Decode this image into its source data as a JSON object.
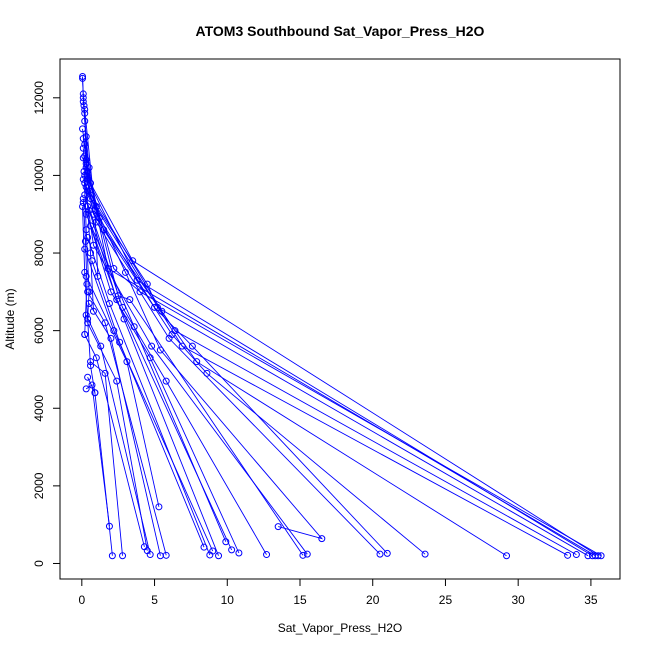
{
  "chart_data": {
    "type": "line",
    "title": "ATOM3 Southbound Sat_Vapor_Press_H2O",
    "xlabel": "Sat_Vapor_Press_H2O",
    "ylabel": "Altitude (m)",
    "xlim": [
      -1.5,
      37
    ],
    "ylim": [
      -400,
      13000
    ],
    "x_ticks": [
      0,
      5,
      10,
      15,
      20,
      25,
      30,
      35
    ],
    "y_ticks": [
      0,
      2000,
      4000,
      6000,
      8000,
      10000,
      12000
    ],
    "x_tick_labels": [
      "0",
      "5",
      "10",
      "15",
      "20",
      "25",
      "30",
      "35"
    ],
    "y_tick_labels": [
      "0",
      "2000",
      "4000",
      "6000",
      "8000",
      "10000",
      "12000"
    ],
    "grid": false,
    "legend": "none",
    "marker": "open-circle",
    "color": "#0000ff",
    "series": [
      {
        "points": [
          [
            0.05,
            12500
          ],
          [
            0.1,
            12100
          ],
          [
            0.15,
            11800
          ],
          [
            0.2,
            11400
          ],
          [
            0.6,
            9800
          ],
          [
            3.5,
            7800
          ],
          [
            35.5,
            200
          ]
        ]
      },
      {
        "points": [
          [
            0.05,
            12550
          ],
          [
            0.1,
            12000
          ],
          [
            0.2,
            11600
          ],
          [
            0.3,
            10400
          ],
          [
            1.8,
            7600
          ],
          [
            35.3,
            200
          ]
        ]
      },
      {
        "points": [
          [
            0.1,
            11900
          ],
          [
            0.3,
            11000
          ],
          [
            0.4,
            9900
          ],
          [
            3.8,
            7300
          ],
          [
            35.1,
            200
          ]
        ]
      },
      {
        "points": [
          [
            0.05,
            11200
          ],
          [
            0.2,
            10800
          ],
          [
            0.5,
            10200
          ],
          [
            1.0,
            9200
          ],
          [
            4.5,
            7200
          ],
          [
            5.2,
            6600
          ],
          [
            34.8,
            200
          ]
        ]
      },
      {
        "points": [
          [
            0.1,
            10950
          ],
          [
            0.4,
            10100
          ],
          [
            2.2,
            7600
          ],
          [
            4.0,
            7000
          ],
          [
            35.7,
            200
          ]
        ]
      },
      {
        "points": [
          [
            0.2,
            10500
          ],
          [
            0.5,
            9600
          ],
          [
            5.5,
            6500
          ],
          [
            6.4,
            6000
          ],
          [
            34.0,
            230
          ]
        ]
      },
      {
        "points": [
          [
            0.1,
            10450
          ],
          [
            0.6,
            9400
          ],
          [
            6.9,
            5600
          ],
          [
            33.4,
            210
          ]
        ]
      },
      {
        "points": [
          [
            0.3,
            10300
          ],
          [
            0.8,
            9000
          ],
          [
            7.9,
            5200
          ],
          [
            29.2,
            200
          ]
        ]
      },
      {
        "points": [
          [
            0.2,
            10000
          ],
          [
            1.5,
            8600
          ],
          [
            6.2,
            5900
          ],
          [
            8.6,
            4900
          ],
          [
            23.6,
            240
          ]
        ]
      },
      {
        "points": [
          [
            0.1,
            9900
          ],
          [
            1.2,
            8900
          ],
          [
            5.0,
            6600
          ],
          [
            7.6,
            5600
          ],
          [
            21.0,
            260
          ]
        ]
      },
      {
        "points": [
          [
            0.3,
            9700
          ],
          [
            1.0,
            8800
          ],
          [
            6.0,
            5800
          ],
          [
            20.5,
            240
          ]
        ]
      },
      {
        "points": [
          [
            0.4,
            9600
          ],
          [
            3.0,
            7500
          ],
          [
            5.4,
            5500
          ],
          [
            16.5,
            640
          ],
          [
            13.5,
            950
          ]
        ]
      },
      {
        "points": [
          [
            0.2,
            9800
          ],
          [
            0.8,
            8200
          ],
          [
            4.8,
            5600
          ],
          [
            15.5,
            240
          ]
        ]
      },
      {
        "points": [
          [
            0.3,
            10200
          ],
          [
            2.5,
            6900
          ],
          [
            3.3,
            6800
          ],
          [
            15.2,
            210
          ]
        ]
      },
      {
        "points": [
          [
            0.2,
            9500
          ],
          [
            2.8,
            6600
          ],
          [
            5.8,
            4700
          ],
          [
            12.7,
            230
          ]
        ]
      },
      {
        "points": [
          [
            0.1,
            9300
          ],
          [
            2.0,
            7000
          ],
          [
            4.7,
            5300
          ],
          [
            10.8,
            270
          ]
        ]
      },
      {
        "points": [
          [
            0.5,
            9100
          ],
          [
            2.4,
            6800
          ],
          [
            10.3,
            350
          ]
        ]
      },
      {
        "points": [
          [
            0.3,
            9000
          ],
          [
            3.6,
            6100
          ],
          [
            9.9,
            560
          ]
        ]
      },
      {
        "points": [
          [
            0.6,
            8700
          ],
          [
            2.9,
            6300
          ],
          [
            9.4,
            200
          ]
        ]
      },
      {
        "points": [
          [
            0.4,
            8400
          ],
          [
            1.9,
            6700
          ],
          [
            8.8,
            220
          ]
        ]
      },
      {
        "points": [
          [
            0.2,
            8100
          ],
          [
            2.2,
            6000
          ],
          [
            9.0,
            320
          ]
        ]
      },
      {
        "points": [
          [
            0.7,
            7800
          ],
          [
            2.6,
            5700
          ],
          [
            8.4,
            420
          ]
        ]
      },
      {
        "points": [
          [
            0.3,
            7400
          ],
          [
            3.1,
            5200
          ],
          [
            5.3,
            1460
          ]
        ]
      },
      {
        "points": [
          [
            0.4,
            7000
          ],
          [
            1.6,
            6200
          ],
          [
            5.8,
            210
          ]
        ]
      },
      {
        "points": [
          [
            0.5,
            6700
          ],
          [
            2.0,
            5800
          ],
          [
            5.4,
            200
          ]
        ]
      },
      {
        "points": [
          [
            0.3,
            6400
          ],
          [
            1.3,
            5600
          ],
          [
            4.7,
            230
          ]
        ]
      },
      {
        "points": [
          [
            0.4,
            6200
          ],
          [
            2.4,
            4700
          ],
          [
            4.5,
            330
          ]
        ]
      },
      {
        "points": [
          [
            0.2,
            5900
          ],
          [
            1.0,
            5300
          ],
          [
            4.3,
            430
          ]
        ]
      },
      {
        "points": [
          [
            0.6,
            5200
          ],
          [
            1.6,
            4900
          ],
          [
            2.8,
            200
          ]
        ]
      },
      {
        "points": [
          [
            0.4,
            4800
          ],
          [
            0.9,
            4400
          ],
          [
            2.1,
            200
          ]
        ]
      },
      {
        "points": [
          [
            0.3,
            4500
          ],
          [
            0.7,
            4600
          ],
          [
            1.9,
            960
          ]
        ]
      },
      {
        "points": [
          [
            0.2,
            11700
          ],
          [
            0.9,
            9100
          ],
          [
            1.1,
            7400
          ]
        ]
      },
      {
        "points": [
          [
            0.1,
            10700
          ],
          [
            0.4,
            9200
          ],
          [
            0.6,
            8000
          ],
          [
            0.8,
            6500
          ]
        ]
      },
      {
        "points": [
          [
            0.15,
            10100
          ],
          [
            0.3,
            8600
          ],
          [
            0.5,
            7000
          ],
          [
            0.4,
            6300
          ]
        ]
      },
      {
        "points": [
          [
            0.1,
            9400
          ],
          [
            0.25,
            8300
          ],
          [
            0.35,
            7200
          ],
          [
            0.2,
            5900
          ]
        ]
      },
      {
        "points": [
          [
            0.05,
            9200
          ],
          [
            0.2,
            7500
          ],
          [
            0.6,
            5100
          ],
          [
            0.9,
            4400
          ]
        ]
      }
    ]
  }
}
